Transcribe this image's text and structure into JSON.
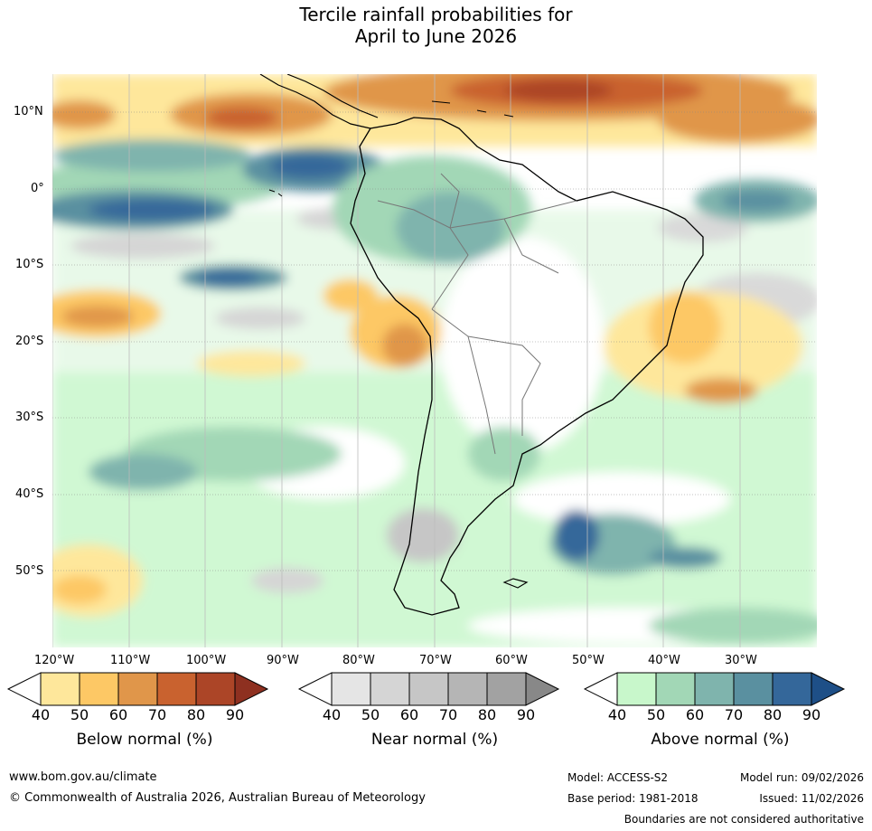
{
  "title": {
    "line1": "Tercile rainfall probabilities for",
    "line2": "April to June 2026"
  },
  "axes": {
    "lat_labels": [
      "10°N",
      "0°",
      "10°S",
      "20°S",
      "30°S",
      "40°S",
      "50°S"
    ],
    "lon_labels": [
      "120°W",
      "110°W",
      "100°W",
      "90°W",
      "80°W",
      "70°W",
      "60°W",
      "50°W",
      "40°W",
      "30°W"
    ]
  },
  "legend": {
    "below": {
      "label": "Below normal (%)",
      "ticks": [
        "40",
        "50",
        "60",
        "70",
        "80",
        "90"
      ],
      "colors": [
        "#ffffff",
        "#fee79b",
        "#fdc865",
        "#e0964a",
        "#c9622f",
        "#ac4527",
        "#8e3020"
      ]
    },
    "near": {
      "label": "Near normal (%)",
      "ticks": [
        "40",
        "50",
        "60",
        "70",
        "80",
        "90"
      ],
      "colors": [
        "#ffffff",
        "#e5e5e5",
        "#d5d5d5",
        "#c6c6c6",
        "#b5b5b5",
        "#a2a2a2",
        "#888888"
      ]
    },
    "above": {
      "label": "Above normal (%)",
      "ticks": [
        "40",
        "50",
        "60",
        "70",
        "80",
        "90"
      ],
      "colors": [
        "#ffffff",
        "#c8f7cb",
        "#a2d7b6",
        "#7fb4ad",
        "#5a90a0",
        "#34679a",
        "#1e4f87"
      ]
    }
  },
  "footer": {
    "website": "www.bom.gov.au/climate",
    "copyright": "© Commonwealth of Australia 2026, Australian Bureau of Meteorology",
    "model": "Model: ACCESS-S2",
    "base_period": "Base period: 1981-2018",
    "model_run": "Model run: 09/02/2026",
    "issued": "Issued: 11/02/2026",
    "disclaimer": "Boundaries are not considered authoritative"
  }
}
